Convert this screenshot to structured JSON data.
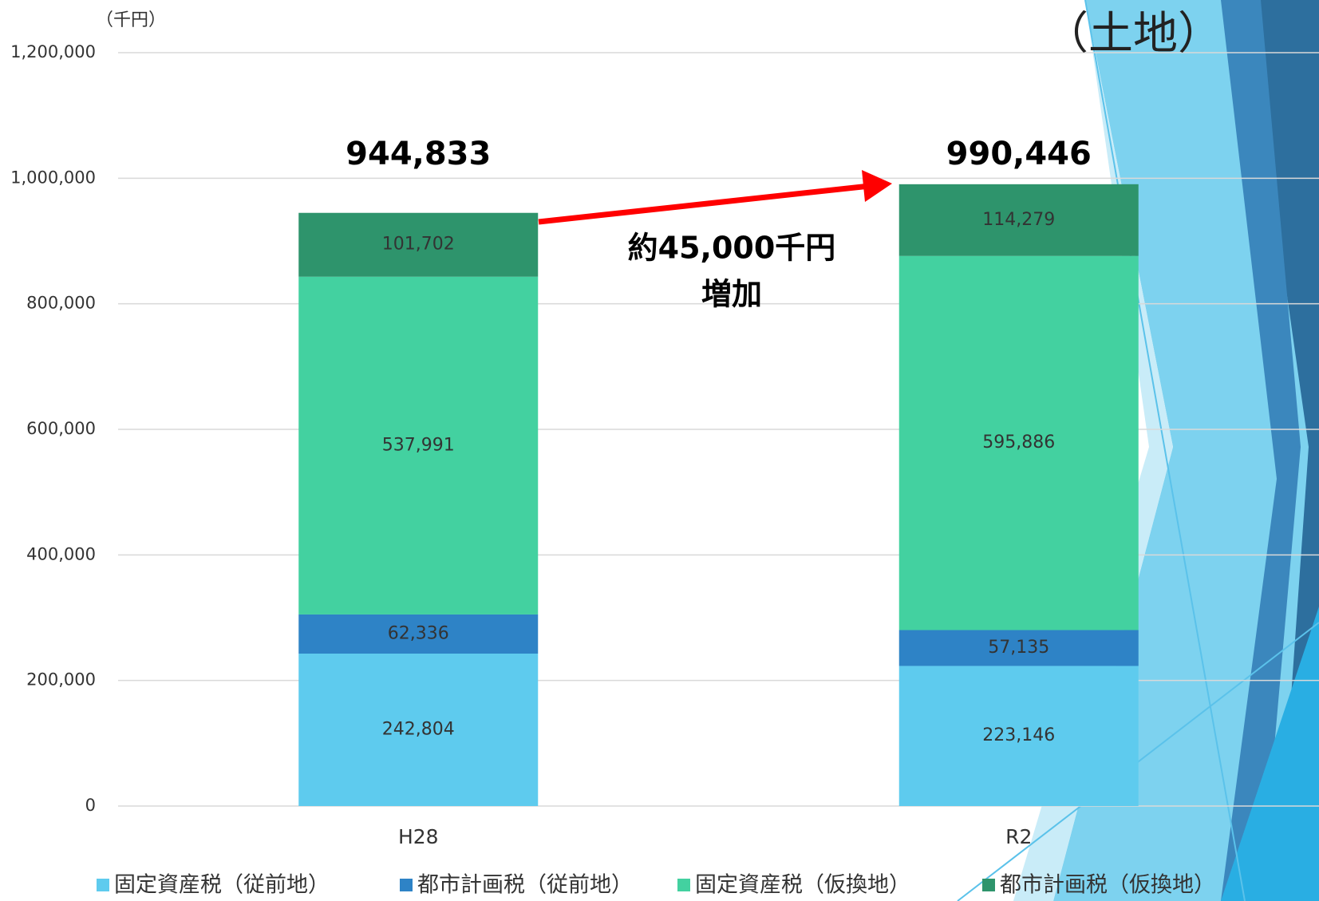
{
  "chart_data": {
    "type": "stacked-bar",
    "title": "（土地）",
    "y_unit_label": "（千円）",
    "categories": [
      "H28",
      "R2"
    ],
    "series": [
      {
        "name": "固定資産税（従前地）",
        "color": "#5ecbee",
        "values": [
          242804,
          223146
        ],
        "value_labels": [
          "242,804",
          "223,146"
        ]
      },
      {
        "name": "都市計画税（従前地）",
        "color": "#2e83c6",
        "values": [
          62336,
          57135
        ],
        "value_labels": [
          "62,336",
          "57,135"
        ]
      },
      {
        "name": "固定資産税（仮換地）",
        "color": "#43d1a0",
        "values": [
          537991,
          595886
        ],
        "value_labels": [
          "537,991",
          "595,886"
        ]
      },
      {
        "name": "都市計画税（仮換地）",
        "color": "#2e946c",
        "values": [
          101702,
          114279
        ],
        "value_labels": [
          "101,702",
          "114,279"
        ]
      }
    ],
    "totals": [
      944833,
      990446
    ],
    "total_labels": [
      "944,833",
      "990,446"
    ],
    "annotation": [
      "約45,000千円",
      "増加"
    ],
    "ylim": [
      0,
      1200000
    ],
    "yticks": [
      {
        "value": 0,
        "label": "0"
      },
      {
        "value": 200000,
        "label": "200,000"
      },
      {
        "value": 400000,
        "label": "400,000"
      },
      {
        "value": 600000,
        "label": "600,000"
      },
      {
        "value": 800000,
        "label": "800,000"
      },
      {
        "value": 1000000,
        "label": "1,000,000"
      },
      {
        "value": 1200000,
        "label": "1,200,000"
      }
    ],
    "grid": true
  }
}
